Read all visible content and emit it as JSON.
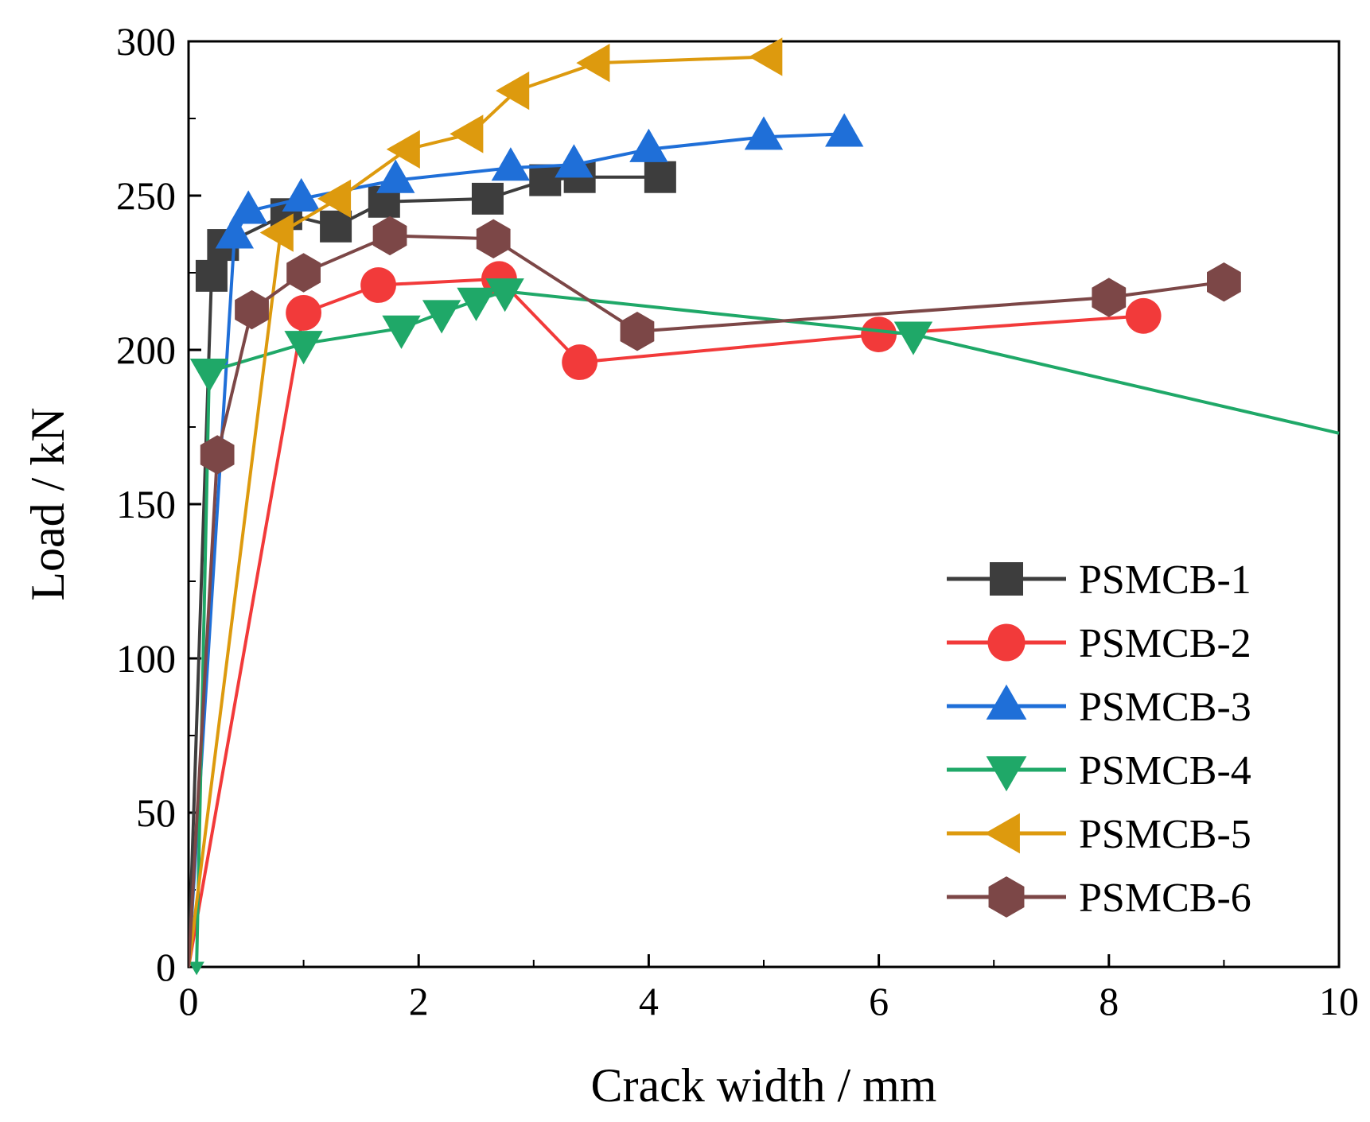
{
  "chart_data": {
    "type": "line",
    "title": "",
    "xlabel": "Crack width / mm",
    "ylabel": "Load / kN",
    "xlim": [
      0,
      10
    ],
    "ylim": [
      0,
      300
    ],
    "xticks": [
      0,
      2,
      4,
      6,
      8,
      10
    ],
    "yticks": [
      0,
      50,
      100,
      150,
      200,
      250,
      300
    ],
    "grid": false,
    "legend_position": "bottom-right",
    "series": [
      {
        "name": "PSMCB-1",
        "color": "#3d3d3d",
        "marker": "square",
        "points": [
          [
            0,
            0
          ],
          [
            0.2,
            224
          ],
          [
            0.3,
            234
          ],
          [
            0.85,
            244
          ],
          [
            1.28,
            240
          ],
          [
            1.7,
            248
          ],
          [
            2.6,
            249
          ],
          [
            3.1,
            255
          ],
          [
            3.4,
            256
          ],
          [
            4.1,
            256
          ]
        ]
      },
      {
        "name": "PSMCB-2",
        "color": "#f23a3a",
        "marker": "circle",
        "points": [
          [
            0,
            0
          ],
          [
            1.0,
            212
          ],
          [
            1.65,
            221
          ],
          [
            2.7,
            223
          ],
          [
            3.4,
            196
          ],
          [
            6.0,
            205
          ],
          [
            8.3,
            211
          ]
        ]
      },
      {
        "name": "PSMCB-3",
        "color": "#1f6fd8",
        "marker": "triangle-up",
        "points": [
          [
            0,
            0
          ],
          [
            0.4,
            237
          ],
          [
            0.52,
            245
          ],
          [
            0.98,
            249
          ],
          [
            1.8,
            255
          ],
          [
            2.8,
            259
          ],
          [
            3.35,
            260
          ],
          [
            4.0,
            265
          ],
          [
            5.0,
            269
          ],
          [
            5.7,
            270
          ]
        ]
      },
      {
        "name": "PSMCB-4",
        "color": "#1fa868",
        "marker": "triangle-down",
        "points": [
          [
            0.07,
            0
          ],
          [
            0.18,
            193
          ],
          [
            1.0,
            202
          ],
          [
            1.85,
            207
          ],
          [
            2.2,
            212
          ],
          [
            2.5,
            216
          ],
          [
            2.75,
            219
          ],
          [
            6.3,
            205
          ],
          [
            10.0,
            173
          ]
        ]
      },
      {
        "name": "PSMCB-5",
        "color": "#dd9a0e",
        "marker": "triangle-left",
        "points": [
          [
            0,
            0
          ],
          [
            0.8,
            238
          ],
          [
            1.3,
            249
          ],
          [
            1.9,
            265
          ],
          [
            2.45,
            270
          ],
          [
            2.85,
            284
          ],
          [
            3.55,
            293
          ],
          [
            5.05,
            295
          ]
        ]
      },
      {
        "name": "PSMCB-6",
        "color": "#7c4747",
        "marker": "hexagon",
        "points": [
          [
            0,
            0
          ],
          [
            0.25,
            166
          ],
          [
            0.55,
            213
          ],
          [
            1.0,
            225
          ],
          [
            1.75,
            237
          ],
          [
            2.65,
            236
          ],
          [
            3.9,
            206
          ],
          [
            8.0,
            217
          ],
          [
            9.0,
            222
          ]
        ]
      }
    ]
  }
}
